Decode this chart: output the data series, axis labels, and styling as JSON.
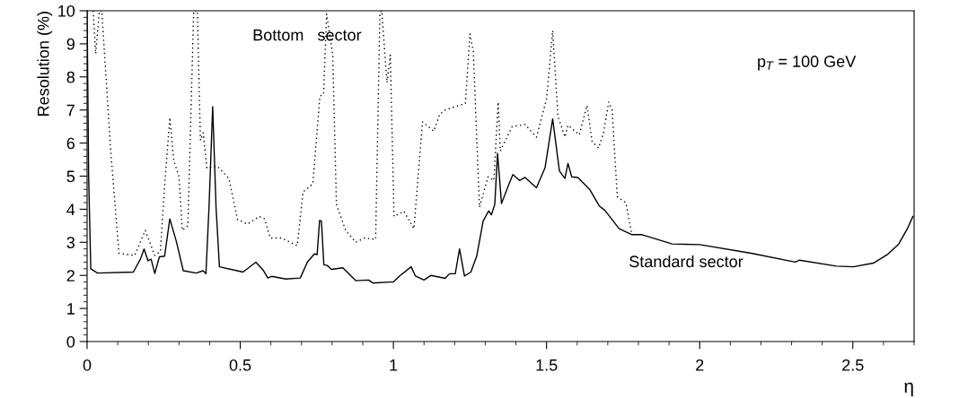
{
  "chart_data": {
    "type": "line",
    "xlabel": "η",
    "ylabel": "Resolution (%)",
    "xlim": [
      0,
      2.7
    ],
    "ylim": [
      0,
      10
    ],
    "xticks": [
      0,
      0.5,
      1,
      1.5,
      2,
      2.5
    ],
    "yticks": [
      0,
      1,
      2,
      3,
      4,
      5,
      6,
      7,
      8,
      9,
      10
    ],
    "grid": false,
    "legend": false,
    "marker": "none",
    "annotations": [
      "p$_{T}$ = 100 GeV"
    ],
    "series": [
      {
        "name": "Standard sector",
        "color": "#000000",
        "line_style": "solid",
        "x": [
          0,
          0.005,
          0.012,
          0.034,
          0.151,
          0.174,
          0.186,
          0.199,
          0.209,
          0.221,
          0.236,
          0.253,
          0.27,
          0.291,
          0.314,
          0.356,
          0.379,
          0.388,
          0.398,
          0.41,
          0.421,
          0.432,
          0.509,
          0.551,
          0.574,
          0.59,
          0.602,
          0.649,
          0.696,
          0.719,
          0.742,
          0.751,
          0.759,
          0.765,
          0.773,
          0.784,
          0.798,
          0.835,
          0.877,
          0.919,
          0.933,
          0.989,
          1.0,
          1.02,
          1.058,
          1.072,
          1.1,
          1.123,
          1.169,
          1.183,
          1.202,
          1.216,
          1.232,
          1.253,
          1.272,
          1.293,
          1.311,
          1.32,
          1.331,
          1.34,
          1.353,
          1.374,
          1.39,
          1.412,
          1.43,
          1.467,
          1.495,
          1.52,
          1.542,
          1.56,
          1.57,
          1.582,
          1.602,
          1.64,
          1.672,
          1.691,
          1.737,
          1.779,
          1.812,
          1.91,
          2.0,
          2.168,
          2.312,
          2.326,
          2.446,
          2.502,
          2.567,
          2.613,
          2.65,
          2.678,
          2.696
        ],
        "values": [
          10,
          5,
          2.2,
          2.07,
          2.1,
          2.49,
          2.8,
          2.44,
          2.49,
          2.06,
          2.56,
          2.58,
          3.71,
          3.04,
          2.14,
          2.07,
          2.14,
          2.05,
          4.06,
          7.1,
          4.06,
          2.26,
          2.1,
          2.4,
          2.17,
          1.92,
          1.97,
          1.89,
          1.92,
          2.4,
          2.65,
          2.63,
          3.66,
          3.64,
          2.32,
          2.3,
          2.18,
          2.23,
          1.84,
          1.86,
          1.77,
          1.8,
          1.8,
          1.98,
          2.26,
          1.98,
          1.86,
          2.0,
          1.91,
          2.05,
          2.05,
          2.8,
          1.98,
          2.1,
          2.58,
          3.64,
          3.95,
          3.83,
          4.15,
          5.69,
          4.17,
          4.68,
          5.05,
          4.87,
          4.96,
          4.65,
          5.25,
          6.73,
          5.16,
          4.93,
          5.39,
          4.98,
          4.96,
          4.61,
          4.1,
          3.96,
          3.41,
          3.23,
          3.23,
          2.95,
          2.93,
          2.67,
          2.4,
          2.46,
          2.28,
          2.26,
          2.37,
          2.63,
          2.95,
          3.41,
          3.78
        ]
      },
      {
        "name": "Bottom   sector",
        "color": "#000000",
        "line_style": "dotted",
        "x": [
          0.02,
          0.028,
          0.04,
          0.048,
          0.076,
          0.104,
          0.155,
          0.19,
          0.221,
          0.239,
          0.253,
          0.27,
          0.283,
          0.3,
          0.311,
          0.329,
          0.348,
          0.36,
          0.37,
          0.379,
          0.391,
          0.425,
          0.463,
          0.491,
          0.523,
          0.562,
          0.579,
          0.598,
          0.635,
          0.686,
          0.705,
          0.737,
          0.76,
          0.772,
          0.782,
          0.802,
          0.814,
          0.844,
          0.877,
          0.905,
          0.942,
          0.956,
          0.962,
          0.979,
          0.99,
          1.002,
          1.034,
          1.067,
          1.095,
          1.132,
          1.151,
          1.169,
          1.235,
          1.25,
          1.261,
          1.281,
          1.309,
          1.328,
          1.342,
          1.349,
          1.388,
          1.43,
          1.467,
          1.5,
          1.52,
          1.537,
          1.56,
          1.57,
          1.607,
          1.632,
          1.649,
          1.67,
          1.686,
          1.703,
          1.714,
          1.731,
          1.759,
          1.779
        ],
        "values": [
          10,
          8.7,
          10,
          10,
          5.9,
          2.67,
          2.6,
          3.36,
          2.6,
          2.72,
          4.7,
          6.77,
          5.48,
          4.98,
          3.36,
          3.5,
          10,
          10,
          6.08,
          6.31,
          5.25,
          5.3,
          4.93,
          3.69,
          3.55,
          3.78,
          3.71,
          3.13,
          3.13,
          2.9,
          4.52,
          4.77,
          7.42,
          7.47,
          9.9,
          8.66,
          4.15,
          3.36,
          3.0,
          3.13,
          3.09,
          9.95,
          10,
          7.83,
          8.66,
          3.78,
          3.94,
          3.41,
          6.64,
          6.36,
          6.87,
          7.0,
          7.2,
          9.3,
          8.76,
          4.06,
          4.98,
          4.87,
          7.24,
          5.76,
          6.5,
          6.56,
          6.18,
          7.33,
          9.4,
          6.82,
          6.18,
          6.54,
          6.25,
          7.14,
          6.04,
          5.85,
          6.31,
          7.24,
          7.0,
          4.38,
          4.19,
          3.23
        ]
      }
    ]
  }
}
